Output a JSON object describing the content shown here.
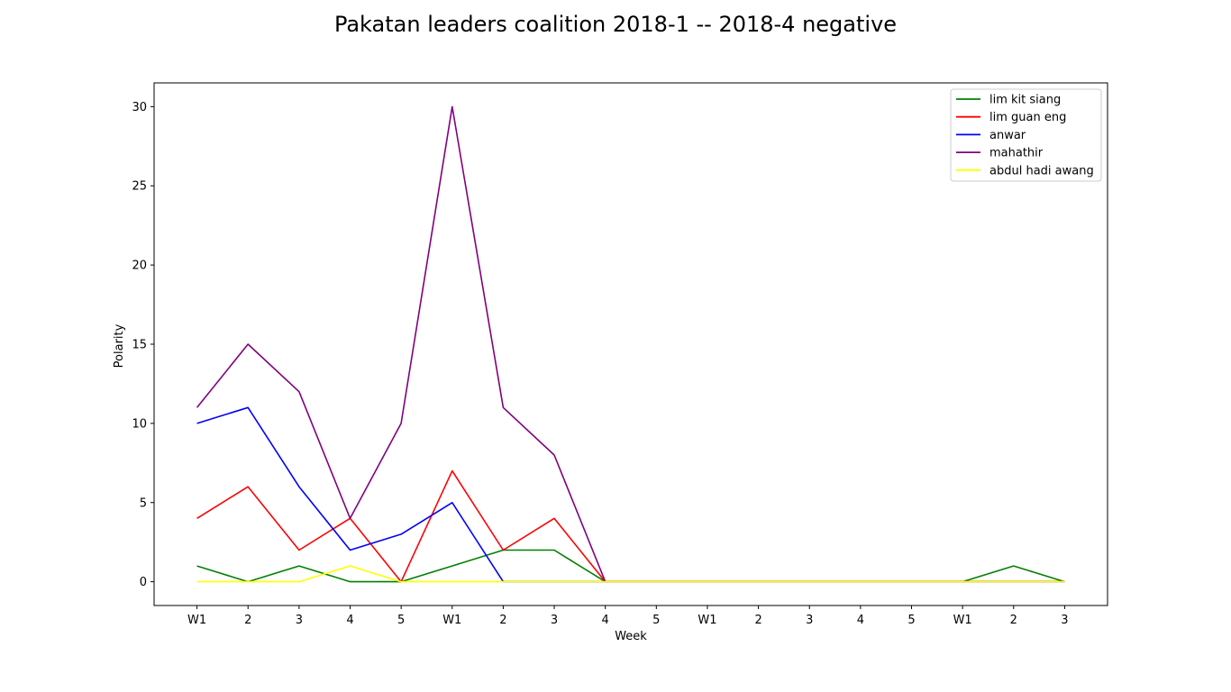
{
  "chart_data": {
    "type": "line",
    "title": "Pakatan leaders coalition 2018-1 -- 2018-4 negative",
    "xlabel": "Week",
    "ylabel": "Polarity",
    "categories": [
      "W1",
      "2",
      "3",
      "4",
      "5",
      "W1",
      "2",
      "3",
      "4",
      "5",
      "W1",
      "2",
      "3",
      "4",
      "5",
      "W1",
      "2",
      "3"
    ],
    "ylim": [
      -1.5,
      31.5
    ],
    "yticks": [
      0,
      5,
      10,
      15,
      20,
      25,
      30
    ],
    "grid": false,
    "legend_position": "top-right",
    "series": [
      {
        "name": "lim kit siang",
        "color": "#008000",
        "values": [
          1,
          0,
          1,
          0,
          0,
          1,
          2,
          2,
          0,
          0,
          0,
          0,
          0,
          0,
          0,
          0,
          1,
          0
        ]
      },
      {
        "name": "lim guan eng",
        "color": "#ff0000",
        "values": [
          4,
          6,
          2,
          4,
          0,
          7,
          2,
          4,
          0,
          0,
          0,
          0,
          0,
          0,
          0,
          0,
          0,
          0
        ]
      },
      {
        "name": "anwar",
        "color": "#0000ff",
        "values": [
          10,
          11,
          6,
          2,
          3,
          5,
          0,
          0,
          0,
          0,
          0,
          0,
          0,
          0,
          0,
          0,
          0,
          0
        ]
      },
      {
        "name": "mahathir",
        "color": "#800080",
        "values": [
          11,
          15,
          12,
          4,
          10,
          30,
          11,
          8,
          0,
          0,
          0,
          0,
          0,
          0,
          0,
          0,
          0,
          0
        ]
      },
      {
        "name": "abdul hadi awang",
        "color": "#ffff00",
        "values": [
          0,
          0,
          0,
          1,
          0,
          0,
          0,
          0,
          0,
          0,
          0,
          0,
          0,
          0,
          0,
          0,
          0,
          0
        ]
      }
    ]
  }
}
